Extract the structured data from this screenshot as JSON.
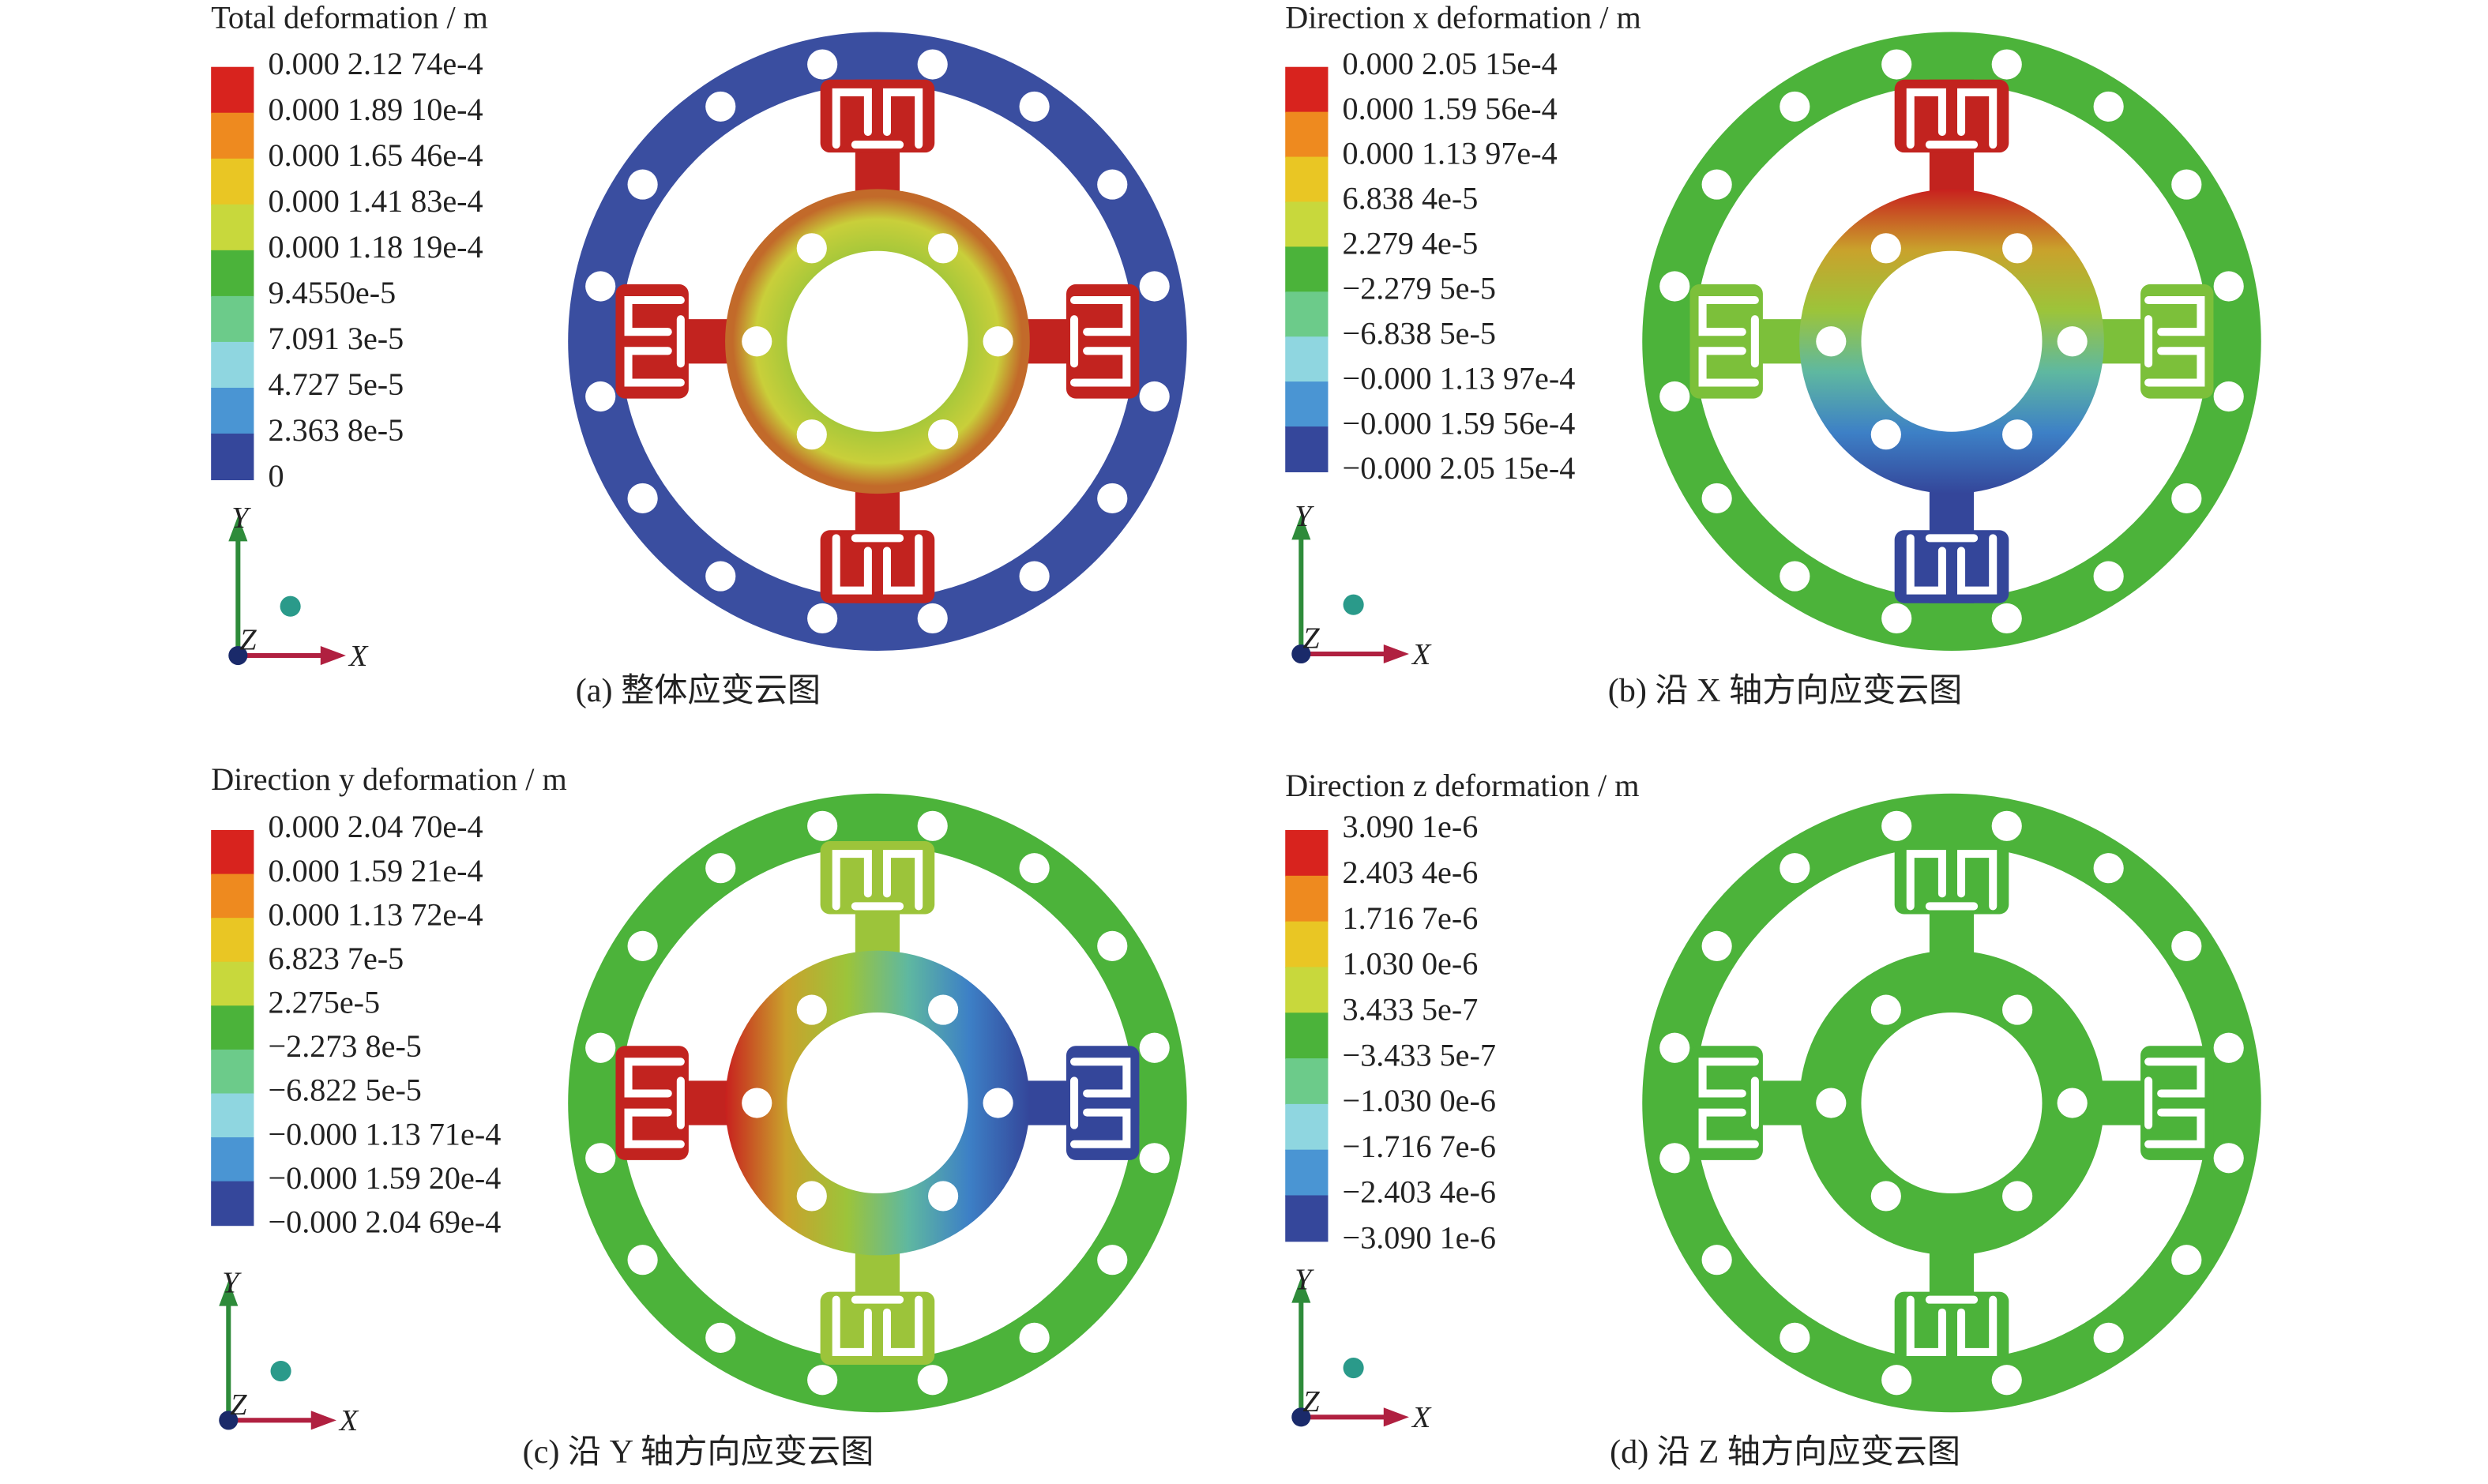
{
  "panels": [
    {
      "legend_title": "Total deformation / m",
      "legend_labels": [
        "0.000 2.12 74e-4",
        "0.000 1.89 10e-4",
        "0.000 1.65 46e-4",
        "0.000 1.41 83e-4",
        "0.000 1.18 19e-4",
        "9.4550e-5",
        "7.091 3e-5",
        "4.727 5e-5",
        "2.363 8e-5",
        "0"
      ],
      "axis_labels": [
        "Y",
        "Z",
        "X"
      ],
      "caption": "(a) 整体应变云图"
    },
    {
      "legend_title": "Direction x deformation / m",
      "legend_labels": [
        "0.000 2.05 15e-4",
        "0.000 1.59 56e-4",
        "0.000 1.13 97e-4",
        "6.838 4e-5",
        "2.279 4e-5",
        "−2.279 5e-5",
        "−6.838 5e-5",
        "−0.000 1.13 97e-4",
        "−0.000 1.59 56e-4",
        "−0.000 2.05 15e-4"
      ],
      "axis_labels": [
        "Y",
        "Z",
        "X"
      ],
      "caption": "(b) 沿 X 轴方向应变云图"
    },
    {
      "legend_title": "Direction y deformation / m",
      "legend_labels": [
        "0.000 2.04 70e-4",
        "0.000 1.59 21e-4",
        "0.000 1.13 72e-4",
        "6.823 7e-5",
        "2.275e-5",
        "−2.273 8e-5",
        "−6.822 5e-5",
        "−0.000 1.13 71e-4",
        "−0.000 1.59 20e-4",
        "−0.000 2.04 69e-4"
      ],
      "axis_labels": [
        "Y",
        "Z",
        "X"
      ],
      "caption": "(c) 沿 Y 轴方向应变云图"
    },
    {
      "legend_title": "Direction z deformation / m",
      "legend_labels": [
        "3.090 1e-6",
        "2.403 4e-6",
        "1.716 7e-6",
        "1.030 0e-6",
        "3.433 5e-7",
        "−3.433 5e-7",
        "−1.030 0e-6",
        "−1.716 7e-6",
        "−2.403 4e-6",
        "−3.090 1e-6"
      ],
      "axis_labels": [
        "Y",
        "Z",
        "X"
      ],
      "caption": "(d) 沿 Z 轴方向应变云图"
    }
  ]
}
